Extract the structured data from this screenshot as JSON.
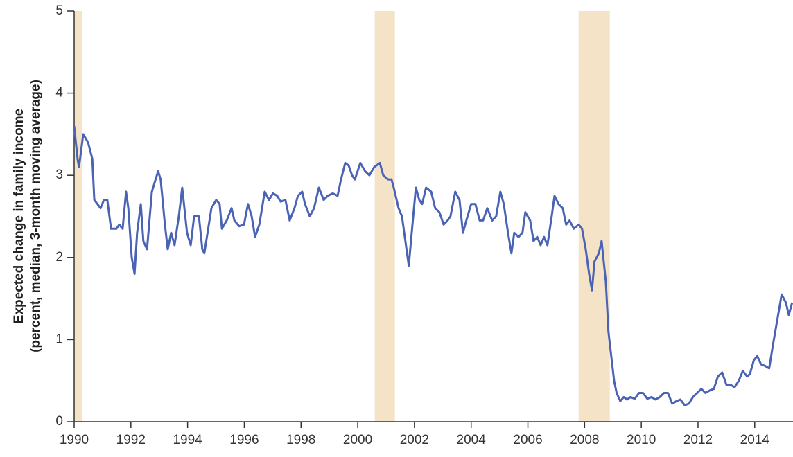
{
  "chart_data": {
    "type": "line",
    "ylabel": "Expected change in family income",
    "ylabel_note": "(percent, median, 3-month moving average)",
    "xlim": [
      1990,
      2015.35
    ],
    "ylim": [
      0,
      5
    ],
    "xticks": [
      1990,
      1992,
      1994,
      1996,
      1998,
      2000,
      2002,
      2004,
      2006,
      2008,
      2010,
      2012,
      2014
    ],
    "yticks": [
      0,
      1,
      2,
      3,
      4,
      5
    ],
    "color": "#4a63b5",
    "band_color": "#f5e3c8",
    "recessions": [
      [
        1990.0,
        1990.27
      ],
      [
        2000.6,
        2001.31
      ],
      [
        2007.79,
        2008.89
      ]
    ],
    "x": [
      1990.0,
      1990.12,
      1990.17,
      1990.32,
      1990.49,
      1990.64,
      1990.71,
      1990.93,
      1991.05,
      1991.17,
      1991.3,
      1991.49,
      1991.59,
      1991.71,
      1991.83,
      1991.91,
      1992.03,
      1992.13,
      1992.22,
      1992.35,
      1992.44,
      1992.57,
      1992.74,
      1992.96,
      1993.05,
      1993.2,
      1993.3,
      1993.42,
      1993.54,
      1993.69,
      1993.81,
      1993.98,
      1994.11,
      1994.23,
      1994.4,
      1994.52,
      1994.59,
      1994.84,
      1995.01,
      1995.13,
      1995.21,
      1995.38,
      1995.55,
      1995.65,
      1995.82,
      1995.99,
      1996.13,
      1996.26,
      1996.38,
      1996.53,
      1996.72,
      1996.87,
      1997.01,
      1997.16,
      1997.28,
      1997.45,
      1997.6,
      1997.77,
      1997.89,
      1998.04,
      1998.14,
      1998.31,
      1998.46,
      1998.63,
      1998.8,
      1998.94,
      1999.12,
      1999.29,
      1999.41,
      1999.56,
      1999.68,
      1999.8,
      1999.9,
      2000.09,
      2000.26,
      2000.41,
      2000.58,
      2000.78,
      2000.9,
      2001.07,
      2001.19,
      2001.27,
      2001.44,
      2001.56,
      2001.68,
      2001.8,
      2001.93,
      2002.05,
      2002.17,
      2002.27,
      2002.41,
      2002.59,
      2002.73,
      2002.88,
      2003.03,
      2003.17,
      2003.27,
      2003.44,
      2003.59,
      2003.71,
      2003.83,
      2004.0,
      2004.15,
      2004.3,
      2004.42,
      2004.57,
      2004.74,
      2004.88,
      2005.03,
      2005.15,
      2005.3,
      2005.42,
      2005.52,
      2005.67,
      2005.81,
      2005.91,
      2006.08,
      2006.2,
      2006.33,
      2006.45,
      2006.57,
      2006.69,
      2006.84,
      2006.94,
      2007.08,
      2007.23,
      2007.35,
      2007.47,
      2007.62,
      2007.79,
      2007.91,
      2008.04,
      2008.16,
      2008.26,
      2008.35,
      2008.5,
      2008.6,
      2008.75,
      2008.84,
      2008.94,
      2009.04,
      2009.13,
      2009.26,
      2009.38,
      2009.5,
      2009.62,
      2009.77,
      2009.92,
      2010.06,
      2010.21,
      2010.36,
      2010.5,
      2010.65,
      2010.8,
      2010.94,
      2011.09,
      2011.24,
      2011.38,
      2011.53,
      2011.68,
      2011.82,
      2011.97,
      2012.12,
      2012.26,
      2012.41,
      2012.56,
      2012.7,
      2012.85,
      2013.0,
      2013.14,
      2013.29,
      2013.44,
      2013.58,
      2013.73,
      2013.83,
      2013.97,
      2014.09,
      2014.22,
      2014.36,
      2014.51,
      2014.65,
      2014.8,
      2014.95,
      2015.1,
      2015.2,
      2015.32
    ],
    "values": [
      3.6,
      3.2,
      3.1,
      3.5,
      3.4,
      3.2,
      2.7,
      2.6,
      2.7,
      2.7,
      2.35,
      2.35,
      2.4,
      2.35,
      2.8,
      2.6,
      2.0,
      1.8,
      2.3,
      2.65,
      2.2,
      2.1,
      2.8,
      3.05,
      2.95,
      2.4,
      2.1,
      2.3,
      2.15,
      2.5,
      2.85,
      2.3,
      2.15,
      2.5,
      2.5,
      2.1,
      2.05,
      2.6,
      2.7,
      2.65,
      2.35,
      2.45,
      2.6,
      2.45,
      2.38,
      2.4,
      2.65,
      2.5,
      2.25,
      2.4,
      2.8,
      2.7,
      2.78,
      2.75,
      2.68,
      2.7,
      2.45,
      2.6,
      2.75,
      2.8,
      2.65,
      2.5,
      2.6,
      2.85,
      2.7,
      2.75,
      2.78,
      2.75,
      2.95,
      3.15,
      3.12,
      3.0,
      2.95,
      3.15,
      3.05,
      3.0,
      3.1,
      3.15,
      3.0,
      2.95,
      2.95,
      2.85,
      2.6,
      2.5,
      2.2,
      1.9,
      2.4,
      2.85,
      2.7,
      2.65,
      2.85,
      2.8,
      2.6,
      2.55,
      2.4,
      2.45,
      2.5,
      2.8,
      2.7,
      2.3,
      2.45,
      2.65,
      2.65,
      2.45,
      2.45,
      2.6,
      2.45,
      2.5,
      2.8,
      2.65,
      2.3,
      2.05,
      2.3,
      2.25,
      2.3,
      2.55,
      2.45,
      2.2,
      2.25,
      2.15,
      2.25,
      2.15,
      2.5,
      2.75,
      2.65,
      2.6,
      2.4,
      2.45,
      2.35,
      2.4,
      2.35,
      2.1,
      1.8,
      1.6,
      1.95,
      2.05,
      2.2,
      1.7,
      1.1,
      0.8,
      0.5,
      0.35,
      0.25,
      0.3,
      0.27,
      0.3,
      0.28,
      0.35,
      0.35,
      0.28,
      0.3,
      0.27,
      0.3,
      0.35,
      0.35,
      0.22,
      0.25,
      0.27,
      0.2,
      0.22,
      0.3,
      0.35,
      0.4,
      0.35,
      0.38,
      0.4,
      0.55,
      0.6,
      0.45,
      0.45,
      0.42,
      0.5,
      0.62,
      0.55,
      0.58,
      0.75,
      0.8,
      0.7,
      0.68,
      0.65,
      0.95,
      1.25,
      1.55,
      1.45,
      1.3,
      1.45
    ]
  }
}
